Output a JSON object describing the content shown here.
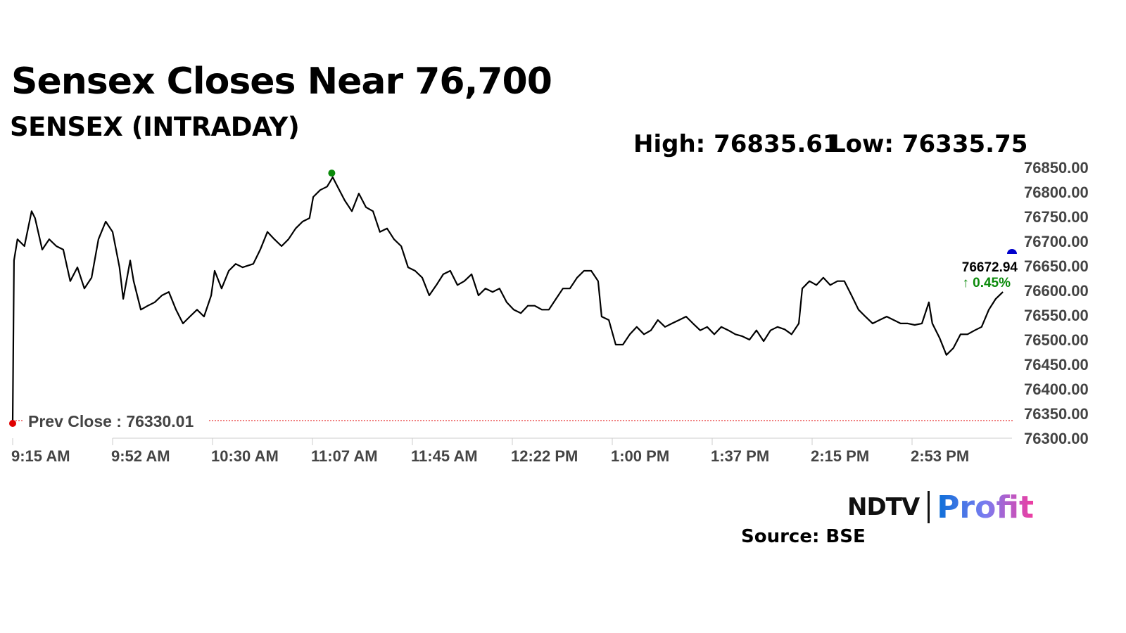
{
  "title": "Sensex Closes Near 76,700",
  "subtitle": "SENSEX (INTRADAY)",
  "high_label": "High: 76835.61",
  "low_label": "Low: 76335.75",
  "source": "Source: BSE",
  "logo": {
    "left": "NDTV",
    "right": "Profit"
  },
  "colors": {
    "line": "#000000",
    "prev_close": "#e00000",
    "high_marker": "#0a8a0a",
    "close_marker": "#0000cc",
    "change": "#0a8a0a",
    "axis_text": "#444444"
  },
  "chart_data": {
    "type": "line",
    "title": "SENSEX (INTRADAY)",
    "xlabel": "",
    "ylabel": "",
    "ylim": [
      76300,
      76850
    ],
    "xlim_minutes_from_915": [
      0,
      375
    ],
    "y_ticks": [
      "76850.00",
      "76800.00",
      "76750.00",
      "76700.00",
      "76650.00",
      "76600.00",
      "76550.00",
      "76500.00",
      "76450.00",
      "76400.00",
      "76350.00",
      "76300.00"
    ],
    "y_tick_values": [
      76850,
      76800,
      76750,
      76700,
      76650,
      76600,
      76550,
      76500,
      76450,
      76400,
      76350,
      76300
    ],
    "x_ticks": [
      "9:15 AM",
      "9:52 AM",
      "10:30 AM",
      "11:07 AM",
      "11:45 AM",
      "12:22 PM",
      "1:00 PM",
      "1:37 PM",
      "2:15 PM",
      "2:53 PM"
    ],
    "x_tick_minutes": [
      0,
      37.5,
      75,
      112.5,
      150,
      187.5,
      225,
      262.5,
      300,
      337.5
    ],
    "prev_close": 76330.01,
    "prev_close_label": "Prev Close : 76330.01",
    "high": {
      "minute": 120,
      "value": 76835.61
    },
    "close": {
      "minute": 375,
      "value": 76672.94,
      "label": "76672.94",
      "change_label": "↑ 0.45%"
    },
    "series": [
      {
        "name": "SENSEX",
        "minutes": [
          0,
          0.5,
          1.8,
          4.4,
          7.1,
          8.4,
          11.1,
          13.7,
          16.4,
          19,
          21.6,
          24.3,
          26.9,
          29.6,
          32.2,
          34.9,
          37.5,
          40.1,
          41.5,
          44.1,
          45.4,
          48.1,
          50.7,
          53.3,
          56,
          58.6,
          61.3,
          63.9,
          66.5,
          69.2,
          71.8,
          74.5,
          75.8,
          78.4,
          81.1,
          83.7,
          86.3,
          90.3,
          92.9,
          95.6,
          98.2,
          100.9,
          103.5,
          106.2,
          108.8,
          111.4,
          112.8,
          115.4,
          118,
          120.1,
          121.9,
          124.6,
          127.3,
          129.9,
          132.6,
          135.2,
          137.8,
          140.5,
          143.1,
          145.8,
          148.4,
          151,
          153.7,
          156.3,
          159,
          161.6,
          164.2,
          166.9,
          169.5,
          172.2,
          174.8,
          177.4,
          180.1,
          182.7,
          185.4,
          188,
          190.7,
          193.3,
          195.9,
          198.6,
          201.2,
          203.9,
          206.5,
          209.1,
          211.8,
          214.4,
          217.1,
          219.7,
          221,
          223.7,
          226.3,
          229,
          231.6,
          234.2,
          236.9,
          239.5,
          242.1,
          244.8,
          247.4,
          250.1,
          252.7,
          255.3,
          258,
          260.6,
          263.3,
          265.9,
          268.6,
          271.2,
          273.8,
          276.5,
          279.1,
          281.8,
          284.4,
          287,
          289.7,
          292.3,
          295,
          296.3,
          299,
          301.6,
          304.2,
          306.8,
          309.5,
          312.1,
          314.8,
          317.4,
          320,
          322.7,
          325.3,
          328,
          330.6,
          333.2,
          335.9,
          338.5,
          341.2,
          343.8,
          345.1,
          347.8,
          350.4,
          353,
          355.7,
          358.3,
          361,
          363.6,
          366.3,
          368.9,
          371.6,
          375
        ],
        "values": [
          76330,
          76661,
          76704,
          76690,
          76761,
          76747,
          76683,
          76704,
          76690,
          76683,
          76619,
          76647,
          76604,
          76626,
          76704,
          76740,
          76719,
          76647,
          76583,
          76661,
          76619,
          76561,
          76569,
          76576,
          76590,
          76597,
          76561,
          76533,
          76547,
          76561,
          76547,
          76590,
          76640,
          76604,
          76640,
          76654,
          76647,
          76654,
          76683,
          76719,
          76704,
          76690,
          76704,
          76726,
          76740,
          76747,
          76790,
          76804,
          76811,
          76830,
          76811,
          76783,
          76761,
          76797,
          76769,
          76761,
          76719,
          76726,
          76704,
          76690,
          76647,
          76640,
          76626,
          76590,
          76611,
          76633,
          76640,
          76611,
          76619,
          76633,
          76590,
          76604,
          76597,
          76604,
          76576,
          76561,
          76554,
          76569,
          76569,
          76561,
          76561,
          76583,
          76604,
          76604,
          76626,
          76640,
          76640,
          76619,
          76547,
          76540,
          76490,
          76490,
          76511,
          76526,
          76511,
          76519,
          76540,
          76526,
          76533,
          76540,
          76547,
          76533,
          76519,
          76526,
          76511,
          76526,
          76519,
          76511,
          76507,
          76500,
          76519,
          76497,
          76519,
          76526,
          76521,
          76511,
          76533,
          76604,
          76619,
          76611,
          76626,
          76611,
          76619,
          76619,
          76590,
          76561,
          76547,
          76533,
          76540,
          76547,
          76540,
          76533,
          76533,
          76530,
          76533,
          76576,
          76533,
          76504,
          76469,
          76483,
          76511,
          76511,
          76519,
          76526,
          76561,
          76583,
          76597,
          76672.94
        ]
      }
    ]
  }
}
